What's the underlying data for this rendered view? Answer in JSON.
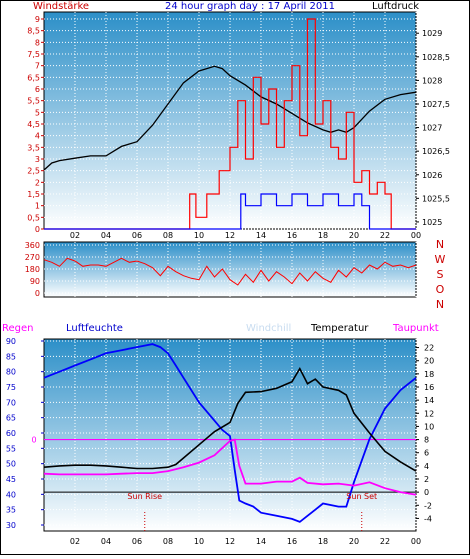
{
  "title": "24 hour graph day : 17 April 2011",
  "colors": {
    "wind_speed": "#ff0000",
    "wind_average": "#0000ff",
    "pressure": "#000000",
    "wind_direction": "#ff0000",
    "humidity": "#0000ff",
    "windchill": "#c8dcf0",
    "temperature": "#000000",
    "dewpoint": "#ff00ff",
    "rain": "#ff00ff",
    "sun": "#cc0000",
    "background_top": "#2c8fc8",
    "background_bottom": "#ffffff"
  },
  "chart_data": [
    {
      "id": "wind",
      "type": "line",
      "title": "24 hour graph day : 17 April 2011",
      "left_label": "Windstärke",
      "right_label": "Luftdruck",
      "x_ticks": [
        "02",
        "04",
        "06",
        "08",
        "10",
        "12",
        "14",
        "16",
        "18",
        "20",
        "22",
        "00"
      ],
      "y_left_ticks": [
        "0",
        "0,5",
        "1",
        "1,5",
        "2",
        "2,5",
        "3",
        "3,5",
        "4",
        "4,5",
        "5",
        "5,5",
        "6",
        "6,5",
        "7",
        "7,5",
        "8",
        "8,5",
        "9"
      ],
      "y_left_range": [
        0,
        9.3
      ],
      "y_right_ticks": [
        "1025",
        "1025,5",
        "1026",
        "1026,5",
        "1027",
        "1027,5",
        "1028",
        "1028,5",
        "1029"
      ],
      "y_right_range": [
        1024.85,
        1029.45
      ],
      "x_range_hours": [
        0,
        24
      ],
      "series": [
        {
          "name": "Luftdruck",
          "axis": "right",
          "x": [
            0,
            0.5,
            1,
            2,
            3,
            4,
            5,
            6,
            7,
            8,
            9,
            10,
            11,
            11.5,
            12,
            13,
            14,
            15,
            16,
            17,
            18,
            18.5,
            19,
            19.5,
            20,
            21,
            22,
            23,
            24
          ],
          "y": [
            1026.1,
            1026.25,
            1026.3,
            1026.35,
            1026.4,
            1026.4,
            1026.6,
            1026.7,
            1027.05,
            1027.5,
            1027.95,
            1028.2,
            1028.3,
            1028.25,
            1028.1,
            1027.9,
            1027.65,
            1027.5,
            1027.3,
            1027.1,
            1026.95,
            1026.9,
            1026.95,
            1026.9,
            1027.0,
            1027.35,
            1027.6,
            1027.7,
            1027.75
          ]
        },
        {
          "name": "Windgeschwindigkeit",
          "axis": "left",
          "x": [
            0,
            9,
            9.4,
            9.8,
            10.5,
            11.3,
            12,
            12.5,
            13,
            13.5,
            14,
            14.5,
            15,
            15.5,
            16,
            16.5,
            17,
            17.5,
            18,
            18.5,
            19,
            19.5,
            20,
            20.5,
            21,
            21.5,
            22,
            22.4,
            24
          ],
          "y": [
            0,
            0,
            1.5,
            0.5,
            1.5,
            2.5,
            3.5,
            5.5,
            3,
            6.5,
            4.5,
            6,
            3.5,
            5.5,
            7,
            4,
            9,
            4.5,
            5.5,
            3.5,
            3,
            5,
            2,
            2.5,
            1.5,
            2,
            1.5,
            0,
            0
          ]
        },
        {
          "name": "Windmittel",
          "axis": "left",
          "x": [
            0,
            12.5,
            12.7,
            13,
            14,
            15,
            16,
            17,
            18,
            19,
            20,
            20.5,
            21,
            21.5,
            22,
            24
          ],
          "y": [
            0,
            0,
            1.5,
            1,
            1.5,
            1,
            1.5,
            1,
            1.5,
            1,
            1.5,
            1,
            0,
            0,
            0,
            0
          ]
        }
      ]
    },
    {
      "id": "direction",
      "type": "line",
      "y_ticks": [
        "0",
        "90",
        "180",
        "270",
        "360"
      ],
      "y_range": [
        0,
        360
      ],
      "right_letters": [
        "N",
        "W",
        "S",
        "O",
        "N"
      ],
      "series": [
        {
          "name": "Windrichtung",
          "x": [
            0,
            0.5,
            1,
            1.5,
            2,
            2.5,
            3,
            3.5,
            4,
            4.5,
            5,
            5.5,
            6,
            6.5,
            7,
            7.5,
            8,
            8.5,
            9,
            9.5,
            10,
            10.5,
            11,
            11.5,
            12,
            12.5,
            13,
            13.5,
            14,
            14.5,
            15,
            15.5,
            16,
            16.5,
            17,
            17.5,
            18,
            18.5,
            19,
            19.5,
            20,
            20.5,
            21,
            21.5,
            22,
            22.5,
            23,
            23.5,
            24
          ],
          "y": [
            250,
            230,
            200,
            260,
            240,
            200,
            210,
            210,
            200,
            230,
            260,
            230,
            240,
            220,
            190,
            130,
            200,
            160,
            130,
            110,
            100,
            200,
            120,
            180,
            100,
            60,
            140,
            80,
            170,
            90,
            160,
            120,
            70,
            150,
            90,
            160,
            110,
            80,
            170,
            120,
            190,
            150,
            210,
            180,
            230,
            200,
            210,
            190,
            210
          ]
        }
      ]
    },
    {
      "id": "temperature",
      "type": "line",
      "labels": {
        "rain": "Regen",
        "humidity": "Luftfeuchte",
        "windchill": "Windchill",
        "temperature": "Temperatur",
        "dewpoint": "Taupunkt",
        "rain_zero": "0",
        "sun_rise": "Sun Rise",
        "sun_set": "Sun Set"
      },
      "y_left_ticks": [
        "30",
        "35",
        "40",
        "45",
        "50",
        "55",
        "60",
        "65",
        "70",
        "75",
        "80",
        "85",
        "90"
      ],
      "y_left_range": [
        30,
        90
      ],
      "y_right_ticks": [
        "-4",
        "-2",
        "0",
        "2",
        "4",
        "6",
        "8",
        "10",
        "12",
        "14",
        "16",
        "18",
        "20",
        "22"
      ],
      "y_right_range": [
        -5,
        23
      ],
      "x_ticks": [
        "02",
        "04",
        "06",
        "08",
        "10",
        "12",
        "14",
        "16",
        "18",
        "20",
        "22",
        "00"
      ],
      "sun_rise_hour": 6.5,
      "sun_set_hour": 20.5,
      "series": [
        {
          "name": "Luftfeuchte",
          "axis": "left",
          "x": [
            0,
            0.5,
            1,
            2,
            3,
            4,
            5,
            6,
            7,
            7.5,
            8,
            8.5,
            9,
            10,
            11,
            11.5,
            12,
            12.3,
            12.6,
            13,
            13.5,
            14,
            15,
            16,
            16.5,
            17,
            17.5,
            18,
            19,
            19.5,
            20,
            21,
            22,
            23,
            24
          ],
          "y": [
            78,
            79,
            80,
            82,
            84,
            86,
            87,
            88,
            89,
            88,
            86,
            82,
            78,
            70,
            64,
            61,
            59,
            48,
            38,
            37,
            36,
            34,
            33,
            32,
            31,
            33,
            35,
            37,
            36,
            36,
            44,
            58,
            68,
            74,
            78
          ]
        },
        {
          "name": "Temperatur",
          "axis": "right",
          "x": [
            0,
            1,
            2,
            3,
            4,
            5,
            6,
            7,
            8,
            8.5,
            9,
            10,
            11,
            12,
            12.5,
            13,
            14,
            15,
            16,
            16.5,
            17,
            17.5,
            18,
            19,
            19.5,
            20,
            21,
            22,
            23,
            24
          ],
          "y": [
            3.8,
            4.0,
            4.1,
            4.1,
            4.0,
            3.8,
            3.6,
            3.6,
            3.8,
            4.2,
            5.2,
            7.2,
            9.2,
            10.6,
            13.5,
            15.2,
            15.3,
            15.8,
            16.8,
            18.8,
            16.5,
            17.2,
            16.0,
            15.5,
            14.8,
            12.0,
            9.0,
            6.2,
            4.6,
            3.2
          ]
        },
        {
          "name": "Taupunkt",
          "axis": "right",
          "x": [
            0,
            1,
            2,
            3,
            4,
            5,
            6,
            7,
            8,
            9,
            10,
            11,
            12,
            12.3,
            12.6,
            13,
            14,
            15,
            16,
            16.5,
            17,
            18,
            19,
            20,
            21,
            22,
            23,
            24
          ],
          "y": [
            2.8,
            2.7,
            2.7,
            2.7,
            2.7,
            2.8,
            2.9,
            2.9,
            3.2,
            3.8,
            4.5,
            5.6,
            7.8,
            8.0,
            4.0,
            1.3,
            1.3,
            1.6,
            1.6,
            2.2,
            1.4,
            1.2,
            1.3,
            1.0,
            1.5,
            0.6,
            0.0,
            -0.4
          ]
        }
      ]
    }
  ]
}
